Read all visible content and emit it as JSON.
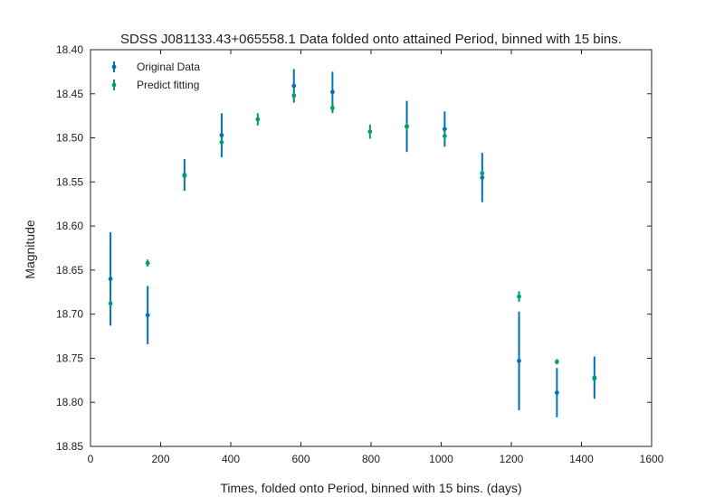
{
  "chart_data": {
    "type": "scatter",
    "title": "SDSS J081133.43+065558.1 Data folded onto attained Period, binned with 15 bins.",
    "xlabel": "Times, folded onto Period, binned with 15 bins. (days)",
    "ylabel": "Magnitude",
    "xlim": [
      0,
      1600
    ],
    "ylim": [
      18.85,
      18.4
    ],
    "y_inverted": true,
    "x_ticks": [
      0,
      200,
      400,
      600,
      800,
      1000,
      1200,
      1400,
      1600
    ],
    "y_ticks": [
      18.4,
      18.45,
      18.5,
      18.55,
      18.6,
      18.65,
      18.7,
      18.75,
      18.8,
      18.85
    ],
    "x_tick_labels": [
      "0",
      "200",
      "400",
      "600",
      "800",
      "1000",
      "1200",
      "1400",
      "1600"
    ],
    "y_tick_labels": [
      "18.40",
      "18.45",
      "18.50",
      "18.55",
      "18.60",
      "18.65",
      "18.70",
      "18.75",
      "18.80",
      "18.85"
    ],
    "grid": false,
    "legend_position": "top-left",
    "series": [
      {
        "name": "Original Data",
        "color": "#0072b2",
        "points": [
          {
            "x": 57,
            "y": 18.66,
            "err": 0.053
          },
          {
            "x": 163,
            "y": 18.701,
            "err": 0.033
          },
          {
            "x": 268,
            "y": 18.542,
            "err": 0.018
          },
          {
            "x": 374,
            "y": 18.497,
            "err": 0.025
          },
          {
            "x": 580,
            "y": 18.441,
            "err": 0.019
          },
          {
            "x": 690,
            "y": 18.448,
            "err": 0.023
          },
          {
            "x": 902,
            "y": 18.487,
            "err": 0.029
          },
          {
            "x": 1010,
            "y": 18.49,
            "err": 0.02
          },
          {
            "x": 1117,
            "y": 18.545,
            "err": 0.028
          },
          {
            "x": 1222,
            "y": 18.753,
            "err": 0.056
          },
          {
            "x": 1330,
            "y": 18.789,
            "err": 0.028
          },
          {
            "x": 1437,
            "y": 18.772,
            "err": 0.024
          }
        ]
      },
      {
        "name": "Predict fitting",
        "color": "#009e73",
        "points": [
          {
            "x": 57,
            "y": 18.688,
            "err": 0.004
          },
          {
            "x": 163,
            "y": 18.642,
            "err": 0.004
          },
          {
            "x": 268,
            "y": 18.543,
            "err": 0.004
          },
          {
            "x": 374,
            "y": 18.505,
            "err": 0.004
          },
          {
            "x": 477,
            "y": 18.479,
            "err": 0.007
          },
          {
            "x": 580,
            "y": 18.452,
            "err": 0.004
          },
          {
            "x": 690,
            "y": 18.466,
            "err": 0.006
          },
          {
            "x": 797,
            "y": 18.493,
            "err": 0.008
          },
          {
            "x": 902,
            "y": 18.487,
            "err": 0.004
          },
          {
            "x": 1010,
            "y": 18.498,
            "err": 0.005
          },
          {
            "x": 1117,
            "y": 18.54,
            "err": 0.004
          },
          {
            "x": 1222,
            "y": 18.68,
            "err": 0.006
          },
          {
            "x": 1330,
            "y": 18.754,
            "err": 0.003
          },
          {
            "x": 1437,
            "y": 18.773,
            "err": 0.004
          }
        ]
      }
    ]
  }
}
